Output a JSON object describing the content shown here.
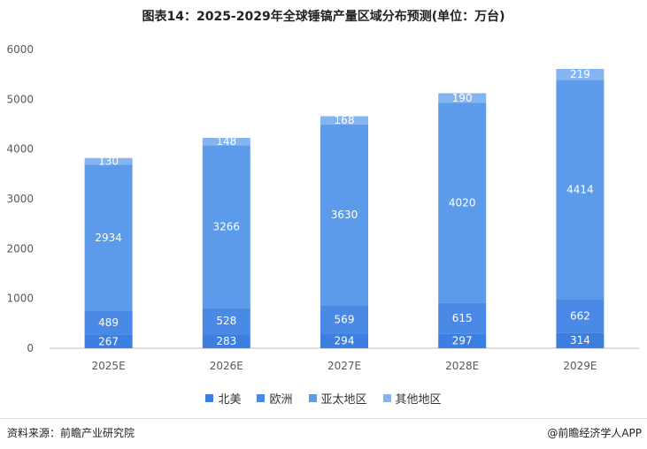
{
  "title": "图表14：2025-2029年全球锤镐产量区域分布预测(单位：万台)",
  "source": "资料来源：前瞻产业研究院",
  "brand": "@前瞻经济学人APP",
  "chart_data": {
    "type": "bar",
    "stacked": true,
    "categories": [
      "2025E",
      "2026E",
      "2027E",
      "2028E",
      "2029E"
    ],
    "ylim": [
      0,
      6000
    ],
    "yticks": [
      0,
      1000,
      2000,
      3000,
      4000,
      5000,
      6000
    ],
    "grid": false,
    "legend_position": "bottom",
    "series": [
      {
        "name": "北美",
        "color": "#3d7fe0",
        "values": [
          267,
          283,
          294,
          297,
          314
        ]
      },
      {
        "name": "欧洲",
        "color": "#4a8ae6",
        "values": [
          489,
          528,
          569,
          615,
          662
        ]
      },
      {
        "name": "亚太地区",
        "color": "#5b9be9",
        "values": [
          2934,
          3266,
          3630,
          4020,
          4414
        ]
      },
      {
        "name": "其他地区",
        "color": "#84b5f0",
        "values": [
          130,
          148,
          168,
          190,
          219
        ]
      }
    ]
  }
}
